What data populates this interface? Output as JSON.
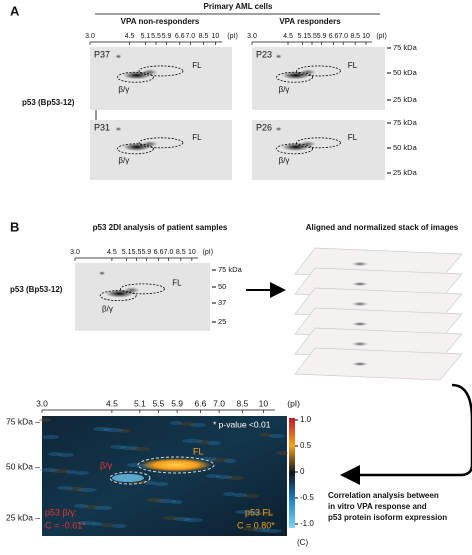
{
  "panel_a": {
    "letter": "A",
    "header": "Primary AML cells",
    "left_title": "VPA non-responders",
    "right_title": "VPA responders",
    "row_label": "p53 (Bp53-12)",
    "pi_axis_left": [
      "3.0",
      "4.5",
      "5.1",
      "5.5",
      "5.9",
      "6.6",
      "7.0",
      "8.5",
      "10",
      "(pI)"
    ],
    "pi_axis_right": [
      "3.0",
      "4.5",
      "5.1",
      "5.5",
      "5.9",
      "6.6",
      "7.0",
      "8.5",
      "10",
      "(pI)"
    ],
    "kda_top": [
      "75 kDa",
      "50 kDa",
      "25 kDa"
    ],
    "kda_bottom": [
      "75 kDa",
      "50 kDa",
      "25 kDa"
    ],
    "gels": [
      {
        "sample": "P37",
        "fl": "FL",
        "bg": "β/γ"
      },
      {
        "sample": "P23",
        "fl": "FL",
        "bg": "β/γ"
      },
      {
        "sample": "P31",
        "fl": "FL",
        "bg": "β/γ"
      },
      {
        "sample": "P26",
        "fl": "FL",
        "bg": "β/γ"
      }
    ]
  },
  "panel_b": {
    "letter": "B",
    "left_title": "p53 2DI analysis of patient samples",
    "right_title": "Aligned and normalized stack of images",
    "row_label": "p53 (Bp53-12)",
    "pi_axis": [
      "3.0",
      "4.5",
      "5.1",
      "5.5",
      "5.9",
      "6.6",
      "7.0",
      "8.5",
      "10",
      "(pI)"
    ],
    "kda": [
      "75 kDa",
      "50",
      "37",
      "25"
    ],
    "fl": "FL",
    "bg": "β/γ",
    "heatmap": {
      "pi_axis": [
        "3.0",
        "4.5",
        "5.1",
        "5.5",
        "5.9",
        "6.6",
        "7.0",
        "8.5",
        "10",
        "(pI)"
      ],
      "kda": [
        "75 kDa –",
        "50 kDa –",
        "25 kDa –"
      ],
      "legend": "* p-value <0.01",
      "fl": "FL",
      "bg": "β/γ",
      "bg_name": "p53 β/γ:",
      "bg_corr": "C = -0.61*",
      "fl_name": "p53 FL",
      "fl_corr": "C = 0.80*",
      "colorbar": [
        "1.0",
        "0.5",
        "0",
        "-0.5",
        "-1.0"
      ],
      "colorbar_unit": "(C)"
    },
    "caption": [
      "Correlation analysis between",
      "in vitro VPA response and",
      "p53 protein isoform expression"
    ]
  }
}
